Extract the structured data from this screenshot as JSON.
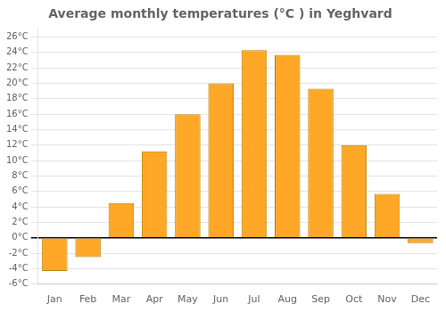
{
  "chart_data": {
    "type": "bar",
    "title": "Average monthly temperatures (°C ) in Yeghvard",
    "categories": [
      "Jan",
      "Feb",
      "Mar",
      "Apr",
      "May",
      "Jun",
      "Jul",
      "Aug",
      "Sep",
      "Oct",
      "Nov",
      "Dec"
    ],
    "values": [
      -4.3,
      -2.5,
      4.5,
      11.2,
      16.0,
      20.0,
      24.3,
      23.7,
      19.3,
      12.0,
      5.7,
      -0.7
    ],
    "color": "#FFA726",
    "ylim": [
      -6,
      27
    ],
    "yticks": [
      {
        "value": -6,
        "label": "-6°C"
      },
      {
        "value": -4,
        "label": "-4°C"
      },
      {
        "value": -2,
        "label": "-2°C"
      },
      {
        "value": 0,
        "label": "0°C"
      },
      {
        "value": 2,
        "label": "2°C"
      },
      {
        "value": 4,
        "label": "4°C"
      },
      {
        "value": 6,
        "label": "6°C"
      },
      {
        "value": 8,
        "label": "8°C"
      },
      {
        "value": 10,
        "label": "10°C"
      },
      {
        "value": 12,
        "label": "12°C"
      },
      {
        "value": 14,
        "label": "14°C"
      },
      {
        "value": 16,
        "label": "16°C"
      },
      {
        "value": 18,
        "label": "18°C"
      },
      {
        "value": 20,
        "label": "20°C"
      },
      {
        "value": 22,
        "label": "22°C"
      },
      {
        "value": 24,
        "label": "24°C"
      },
      {
        "value": 26,
        "label": "26°C"
      }
    ],
    "grid": true
  }
}
